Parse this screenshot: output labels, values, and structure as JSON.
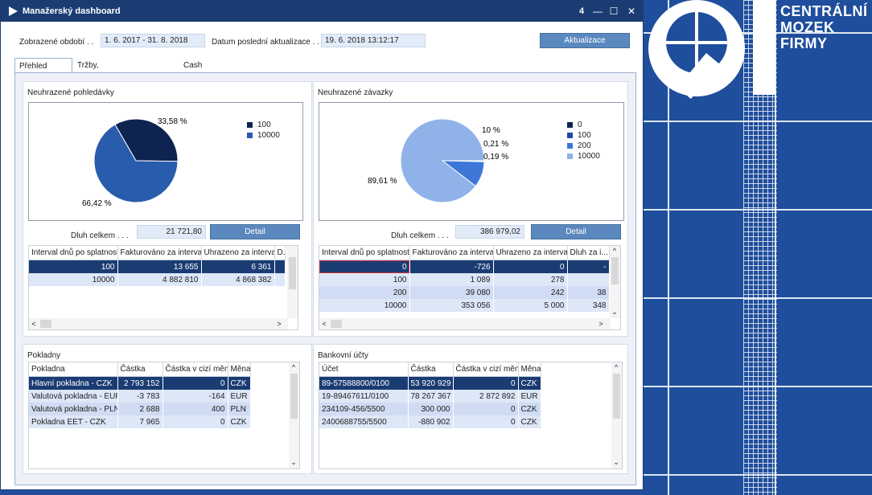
{
  "window": {
    "title": "Manažerský dashboard",
    "badge": "4",
    "minimize": "—",
    "maximize": "☐",
    "close": "✕"
  },
  "header": {
    "period_label": "Zobrazené období . .",
    "period_value": "1. 6. 2017 - 31. 8. 2018",
    "last_update_label": "Datum poslední aktualizace . .",
    "last_update_value": "19. 6. 2018 13:12:17",
    "refresh_button": "Aktualizace"
  },
  "tabs": [
    {
      "label": "Přehled financí",
      "active": true
    },
    {
      "label": "Tržby, hospodářský výsledek",
      "active": false
    },
    {
      "label": "Cash flow",
      "active": false
    }
  ],
  "receivables": {
    "title": "Neuhrazené pohledávky",
    "chart_data": {
      "type": "pie",
      "categories": [
        "100",
        "10000"
      ],
      "values": [
        33.58,
        66.42
      ],
      "labels": [
        "33,58 %",
        "66,42 %"
      ],
      "colors": [
        "#0f2350",
        "#2a5cae"
      ],
      "legend": "right"
    },
    "total_label": "Dluh celkem . . .",
    "total_value": "21 721,80",
    "detail_button": "Detail",
    "grid": {
      "columns": [
        "Interval dnů po splatnosti",
        "Fakturováno za interval",
        "Uhrazeno za interval",
        "D..."
      ],
      "rows": [
        [
          "100",
          "13 655",
          "6 361",
          ""
        ],
        [
          "10000",
          "4 882 810",
          "4 868 382",
          ""
        ]
      ]
    }
  },
  "payables": {
    "title": "Neuhrazené závazky",
    "chart_data": {
      "type": "pie",
      "categories": [
        "0",
        "100",
        "200",
        "10000"
      ],
      "values": [
        0.19,
        0.21,
        10,
        89.61
      ],
      "labels": [
        "0,19 %",
        "0,21 %",
        "10 %",
        "89,61 %"
      ],
      "colors": [
        "#0f2350",
        "#1e4aa0",
        "#3d78d8",
        "#8fb2e8"
      ],
      "legend": "right"
    },
    "total_label": "Dluh celkem . . .",
    "total_value": "386 979,02",
    "detail_button": "Detail",
    "grid": {
      "columns": [
        "Interval dnů po splatnosti",
        "Fakturováno za interval",
        "Uhrazeno za interval",
        "Dluh za i..."
      ],
      "rows": [
        [
          "0",
          "-726",
          "0",
          "-"
        ],
        [
          "100",
          "1 089",
          "278",
          ""
        ],
        [
          "200",
          "39 080",
          "242",
          "38"
        ],
        [
          "10000",
          "353 056",
          "5 000",
          "348"
        ]
      ]
    }
  },
  "cash_desks": {
    "title": "Pokladny",
    "columns": [
      "Pokladna",
      "Částka",
      "Částka v cizí měně",
      "Měna"
    ],
    "rows": [
      [
        "Hlavní pokladna - CZK",
        "2 793 152",
        "0",
        "CZK"
      ],
      [
        "Valutová pokladna - EUR",
        "-3 783",
        "-164",
        "EUR"
      ],
      [
        "Valutová pokladna - PLN",
        "2 688",
        "400",
        "PLN"
      ],
      [
        "Pokladna EET - CZK",
        "7 965",
        "0",
        "CZK"
      ]
    ]
  },
  "bank_accounts": {
    "title": "Bankovní účty",
    "columns": [
      "Účet",
      "Částka",
      "Částka v cizí měně",
      "Měna"
    ],
    "rows": [
      [
        "89-57588800/0100",
        "53 920 929",
        "0",
        "CZK"
      ],
      [
        "19-89467611/0100",
        "78 267 367",
        "2 872 892",
        "EUR"
      ],
      [
        "234109-456/5500",
        "300 000",
        "0",
        "CZK"
      ],
      [
        "2400688755/5500",
        "-880 902",
        "0",
        "CZK"
      ]
    ]
  },
  "brand": {
    "line1": "CENTRÁLNÍ",
    "line2": "MOZEK",
    "line3": "FIRMY"
  },
  "arrows": {
    "up": "^",
    "down": "⌄",
    "left": "<",
    "right": ">"
  }
}
